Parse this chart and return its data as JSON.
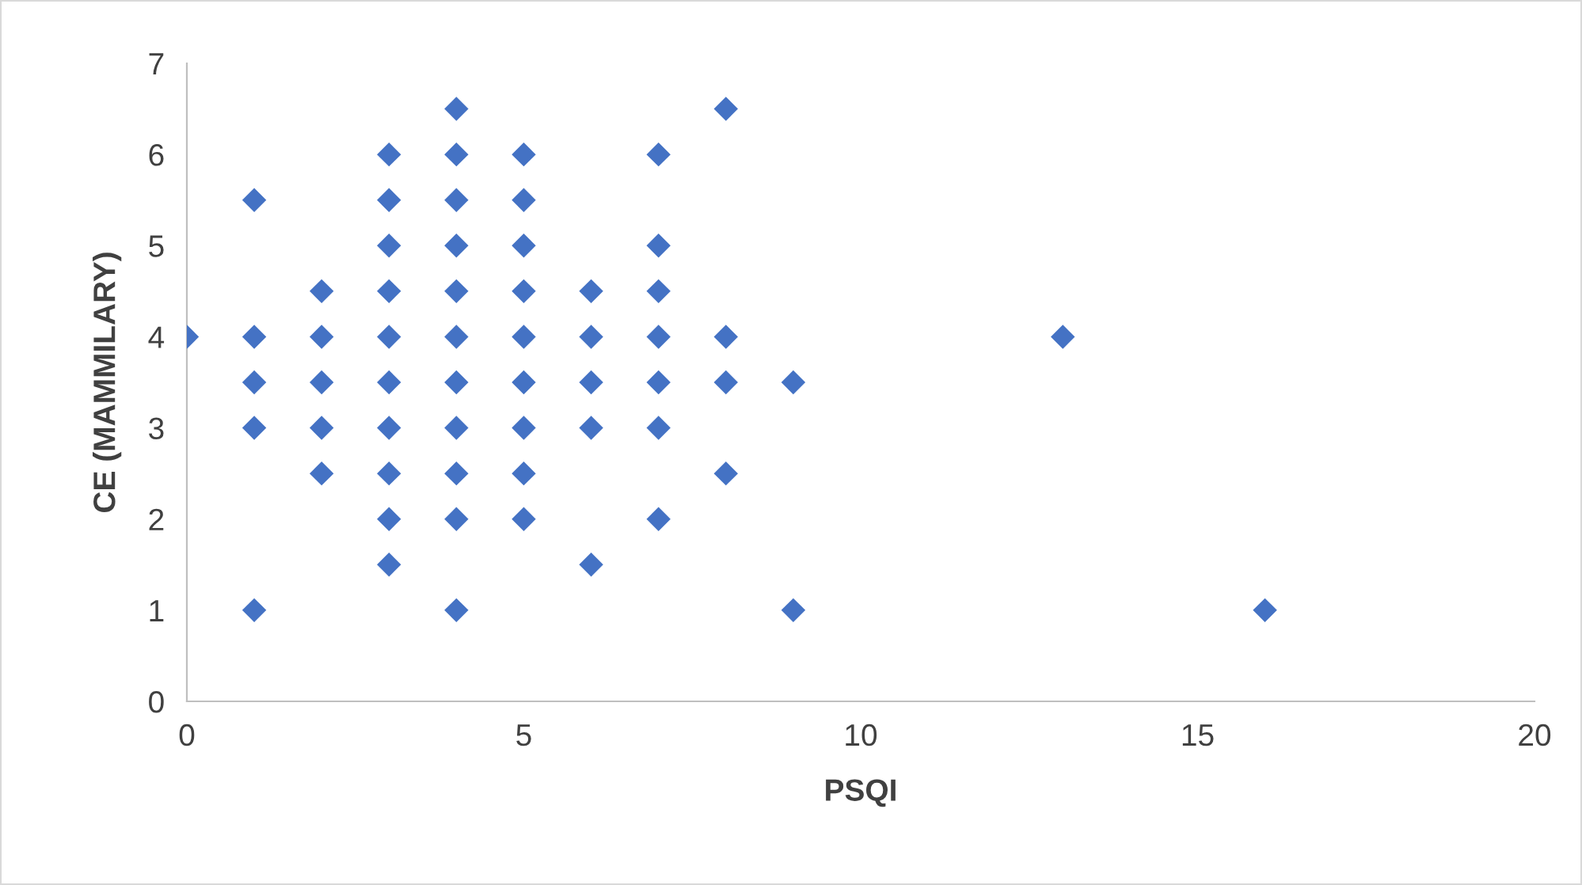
{
  "chart_data": {
    "type": "scatter",
    "xlabel": "PSQI",
    "ylabel": "CE (MAMMILARY)",
    "series": [
      {
        "color": "#4472c4",
        "x": [
          0,
          1,
          1,
          1,
          1,
          1,
          2,
          2,
          2,
          2,
          2,
          3,
          3,
          3,
          3,
          3,
          3,
          3,
          3,
          3,
          3,
          4,
          4,
          4,
          4,
          4,
          4,
          4,
          4,
          4,
          4,
          4,
          5,
          5,
          5,
          5,
          5,
          5,
          5,
          5,
          5,
          6,
          6,
          6,
          6,
          6,
          7,
          7,
          7,
          7,
          7,
          7,
          7,
          8,
          8,
          8,
          8,
          9,
          9,
          13,
          16
        ],
        "values": [
          4,
          5.5,
          4,
          3.5,
          3,
          1,
          4.5,
          4,
          3.5,
          3,
          2.5,
          6,
          5.5,
          5,
          4.5,
          4,
          3.5,
          3,
          2.5,
          2,
          1.5,
          6.5,
          6,
          5.5,
          5,
          4.5,
          4,
          3.5,
          3,
          2.5,
          2,
          1,
          6,
          5.5,
          5,
          4.5,
          4,
          3.5,
          3,
          2.5,
          2,
          4.5,
          4,
          3.5,
          3,
          1.5,
          6,
          5,
          4.5,
          4,
          3.5,
          3,
          2,
          6.5,
          4,
          3.5,
          2.5,
          3.5,
          1,
          4,
          1
        ]
      }
    ],
    "xlim": [
      0,
      20
    ],
    "xticks": [
      0,
      5,
      10,
      15,
      20
    ],
    "ylim": [
      0,
      7
    ],
    "yticks": [
      0,
      1,
      2,
      3,
      4,
      5,
      6,
      7
    ],
    "marker": "diamond",
    "grid": false,
    "legend": false
  }
}
